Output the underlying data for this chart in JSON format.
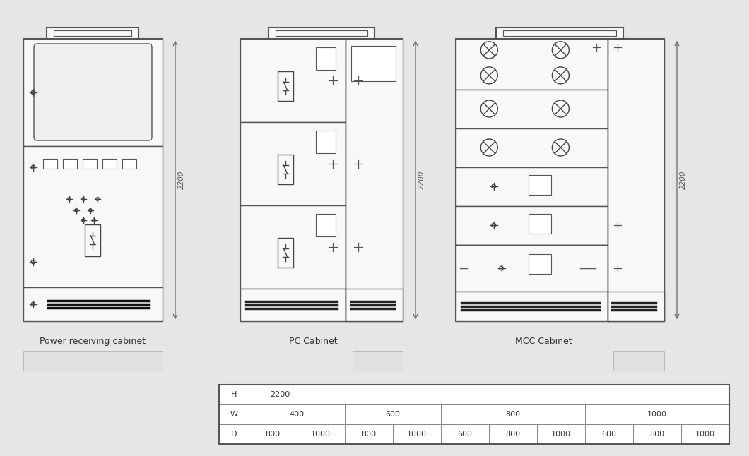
{
  "bg_color": "#e6e6e6",
  "cab_bg": "#f8f8f8",
  "lc": "#555555",
  "lc_dark": "#222222",
  "white": "#ffffff",
  "label1": "Power receiving cabinet",
  "label2": "PC Cabinet",
  "label3": "MCC Cabinet",
  "dim_text": "2200",
  "table_rows": [
    [
      "H",
      "2200"
    ],
    [
      "W",
      "400",
      "600",
      "800",
      "1000"
    ],
    [
      "D",
      "800",
      "1000",
      "800",
      "1000",
      "600",
      "800",
      "1000",
      "600",
      "800",
      "1000"
    ]
  ]
}
